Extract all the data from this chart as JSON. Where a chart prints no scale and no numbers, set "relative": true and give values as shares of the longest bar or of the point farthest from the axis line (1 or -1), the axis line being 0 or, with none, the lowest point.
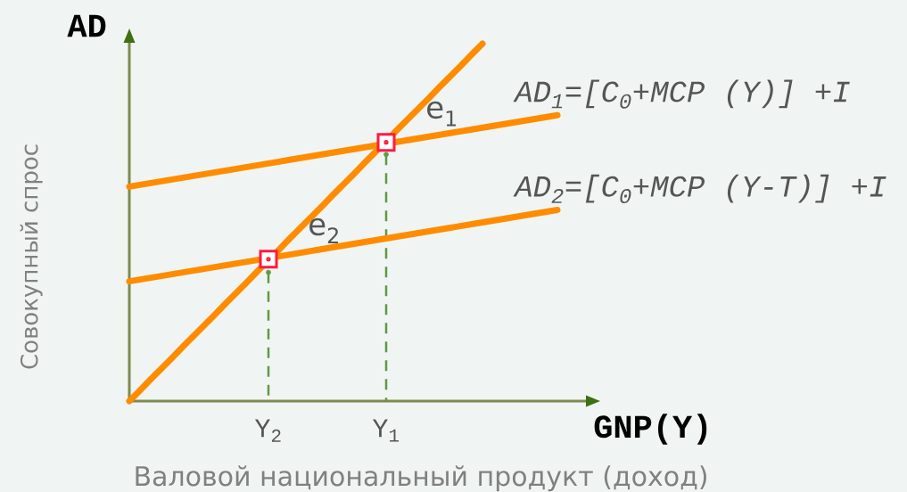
{
  "chart_data": {
    "type": "line",
    "relative": true,
    "xlabel": "Валовой национальный продукт (доход)",
    "ylabel": "Совокупный спрос",
    "annotations": [
      "AD",
      "GNP(Y)",
      {
        "text": "e$_{1}$",
        "x": "Y$_{1}$",
        "y": 0.724
      },
      {
        "text": "e$_{2}$",
        "x": "Y$_{2}$",
        "y": 0.397
      }
    ],
    "categories": [
      null,
      null,
      null,
      null,
      null,
      null,
      null,
      null,
      null,
      null,
      null,
      null,
      null,
      "Y$_{2}$",
      null,
      null,
      null,
      null,
      null,
      null,
      null,
      null,
      null,
      null,
      "Y$_{1}$",
      null,
      null,
      null,
      null,
      null,
      null,
      null,
      null,
      null,
      null,
      null,
      null,
      null,
      null,
      null,
      null
    ],
    "series": [
      {
        "type": "lollipop",
        "color": "#5e9a44",
        "line_style": "dashed",
        "marker": "circle",
        "values": [
          null,
          null,
          null,
          null,
          null,
          null,
          null,
          null,
          null,
          null,
          null,
          null,
          null,
          0.36,
          null,
          null,
          null,
          null,
          null,
          null,
          null,
          null,
          null,
          null,
          0.69,
          null,
          null,
          null,
          null,
          null,
          null,
          null,
          null,
          null,
          null,
          null,
          null,
          null,
          null,
          null,
          null
        ]
      },
      {
        "color": "#ff8c00",
        "values": [
          0,
          0.03,
          0.061,
          0.091,
          0.121,
          0.152,
          0.182,
          0.212,
          0.242,
          0.273,
          0.303,
          0.333,
          0.364,
          0.394,
          0.424,
          0.455,
          0.485,
          0.515,
          0.545,
          0.576,
          0.606,
          0.636,
          0.667,
          0.697,
          0.727,
          0.758,
          0.788,
          0.818,
          0.848,
          0.879,
          0.909,
          0.939,
          0.97,
          1,
          null,
          null,
          null,
          null,
          null,
          null,
          null
        ]
      },
      {
        "name": "AD$_{1}$=[C$_{0}$+MCP (Y)] +I",
        "color": "#ff8c00",
        "values": [
          0.6,
          0.605,
          0.61,
          0.615,
          0.62,
          0.625,
          0.63,
          0.635,
          0.64,
          0.645,
          0.65,
          0.655,
          0.66,
          0.665,
          0.67,
          0.675,
          0.68,
          0.685,
          0.69,
          0.695,
          0.7,
          0.705,
          0.71,
          0.715,
          0.72,
          0.725,
          0.73,
          0.735,
          0.74,
          0.745,
          0.75,
          0.755,
          0.76,
          0.765,
          0.77,
          0.775,
          0.78,
          0.785,
          0.79,
          0.795,
          0.8
        ]
      },
      {
        "name": "AD$_{2}$=[C$_{0}$+MCP (Y-T)] +I",
        "color": "#ff8c00",
        "values": [
          0.335,
          0.34,
          0.345,
          0.35,
          0.355,
          0.36,
          0.365,
          0.37,
          0.375,
          0.38,
          0.385,
          0.39,
          0.395,
          0.4,
          0.405,
          0.41,
          0.415,
          0.42,
          0.425,
          0.43,
          0.435,
          0.44,
          0.445,
          0.45,
          0.455,
          0.46,
          0.465,
          0.47,
          0.475,
          0.48,
          0.485,
          0.49,
          0.495,
          0.5,
          0.505,
          0.51,
          0.515,
          0.52,
          0.525,
          0.53,
          0.535
        ]
      },
      {
        "type": "scatter",
        "color": "#ff1a40",
        "marker": "square",
        "values": [
          null,
          null,
          null,
          null,
          null,
          null,
          null,
          null,
          null,
          null,
          null,
          null,
          null,
          0.397,
          null,
          null,
          null,
          null,
          null,
          null,
          null,
          null,
          null,
          null,
          0.724,
          null,
          null,
          null,
          null,
          null,
          null,
          null,
          null,
          null,
          null,
          null,
          null,
          null,
          null,
          null,
          null
        ]
      }
    ]
  }
}
